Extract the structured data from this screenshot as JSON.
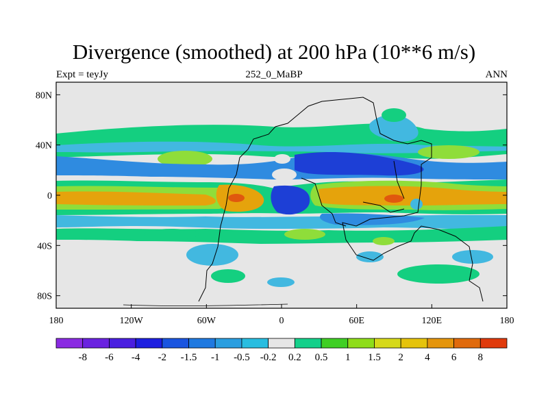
{
  "title": "Divergence (smoothed) at 200 hPa (10**6 m/s)",
  "subtitle_left": "Expt = teyJy",
  "subtitle_center": "252_0_MaBP",
  "subtitle_right": "ANN",
  "map": {
    "projection": "cylindrical equidistant",
    "lon_range": [
      -180,
      180
    ],
    "lat_range": [
      -90,
      90
    ],
    "background_color": "#e6e6e6",
    "lat_ticks": [
      "80N",
      "40N",
      "0",
      "40S",
      "80S"
    ],
    "lon_ticks": [
      "180",
      "120W",
      "60W",
      "0",
      "60E",
      "120E",
      "180"
    ],
    "field": "divergence at 200 hPa",
    "palette": {
      "strong_convergence": "#1d3fd6",
      "convergence": "#2f8be0",
      "weak_convergence": "#42b8e0",
      "neutral": "#e6e6e6",
      "weak_divergence": "#14cf80",
      "divergence": "#8fdd3a",
      "strong_divergence": "#e5a30c",
      "peak_divergence": "#e0580e"
    }
  },
  "colorbar": {
    "labels": [
      "-8",
      "-6",
      "-4",
      "-2",
      "-1.5",
      "-1",
      "-0.5",
      "-0.2",
      "0.2",
      "0.5",
      "1",
      "1.5",
      "2",
      "4",
      "6",
      "8"
    ],
    "colors": [
      "#8a2be2",
      "#6a22e0",
      "#4a1fe0",
      "#1d1fe0",
      "#1a55e0",
      "#1f79e0",
      "#2a9ee0",
      "#28bde0",
      "#e6e6e6",
      "#14d08a",
      "#3fcf24",
      "#8edd1a",
      "#d6d91a",
      "#e5c30c",
      "#e5950c",
      "#e06a0c",
      "#e03a0c"
    ]
  }
}
